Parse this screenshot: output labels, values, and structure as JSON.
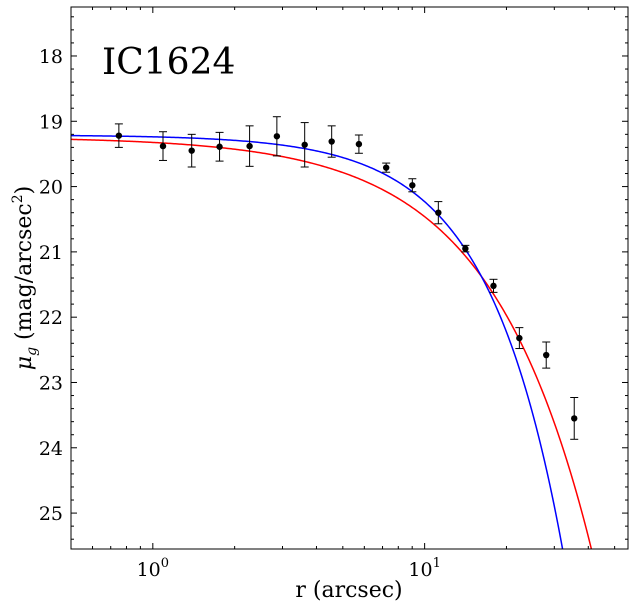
{
  "chart_data": {
    "type": "scatter",
    "title": "",
    "annotation": "IC1624",
    "xlabel": "r (arcsec)",
    "ylabel_text": "(mag/arcsec",
    "ylabel_symbol": "μ",
    "ylabel_subscript": "g",
    "ylabel_superscript": "2",
    "xscale": "log",
    "xlim": [
      0.5,
      56
    ],
    "ylim": [
      25.55,
      17.25
    ],
    "y_inverted": true,
    "x_tick_labels": [
      {
        "value": 1,
        "base": "10",
        "exp": "0"
      },
      {
        "value": 10,
        "base": "10",
        "exp": "1"
      }
    ],
    "y_ticks": [
      18,
      19,
      20,
      21,
      22,
      23,
      24,
      25
    ],
    "y_tick_labels": [
      "18",
      "19",
      "20",
      "21",
      "22",
      "23",
      "24",
      "25"
    ],
    "grid": false,
    "series": [
      {
        "type": "errorbar",
        "color": "#000000",
        "points": [
          {
            "x": 0.75,
            "y": 19.22,
            "err": 0.18
          },
          {
            "x": 1.09,
            "y": 19.38,
            "err": 0.22
          },
          {
            "x": 1.39,
            "y": 19.45,
            "err": 0.25
          },
          {
            "x": 1.76,
            "y": 19.39,
            "err": 0.22
          },
          {
            "x": 2.27,
            "y": 19.38,
            "err": 0.31
          },
          {
            "x": 2.86,
            "y": 19.23,
            "err": 0.3
          },
          {
            "x": 3.62,
            "y": 19.36,
            "err": 0.34
          },
          {
            "x": 4.55,
            "y": 19.31,
            "err": 0.24
          },
          {
            "x": 5.73,
            "y": 19.35,
            "err": 0.14
          },
          {
            "x": 7.22,
            "y": 19.71,
            "err": 0.07
          },
          {
            "x": 9.01,
            "y": 19.98,
            "err": 0.1
          },
          {
            "x": 11.23,
            "y": 20.4,
            "err": 0.17
          },
          {
            "x": 14.12,
            "y": 20.95,
            "err": 0.05
          },
          {
            "x": 17.92,
            "y": 21.52,
            "err": 0.1
          },
          {
            "x": 22.31,
            "y": 22.32,
            "err": 0.16
          },
          {
            "x": 28.01,
            "y": 22.58,
            "err": 0.2
          },
          {
            "x": 35.51,
            "y": 23.55,
            "err": 0.32
          }
        ]
      },
      {
        "type": "line",
        "color": "#ff0000",
        "model": {
          "mu0": 19.24,
          "re": 12.0,
          "n": 0.86,
          "bn": 1.39
        }
      },
      {
        "type": "line",
        "color": "#0000ff",
        "model": {
          "mu0": 19.21,
          "re": 12.3,
          "n": 0.64,
          "bn": 1.3
        }
      }
    ]
  }
}
